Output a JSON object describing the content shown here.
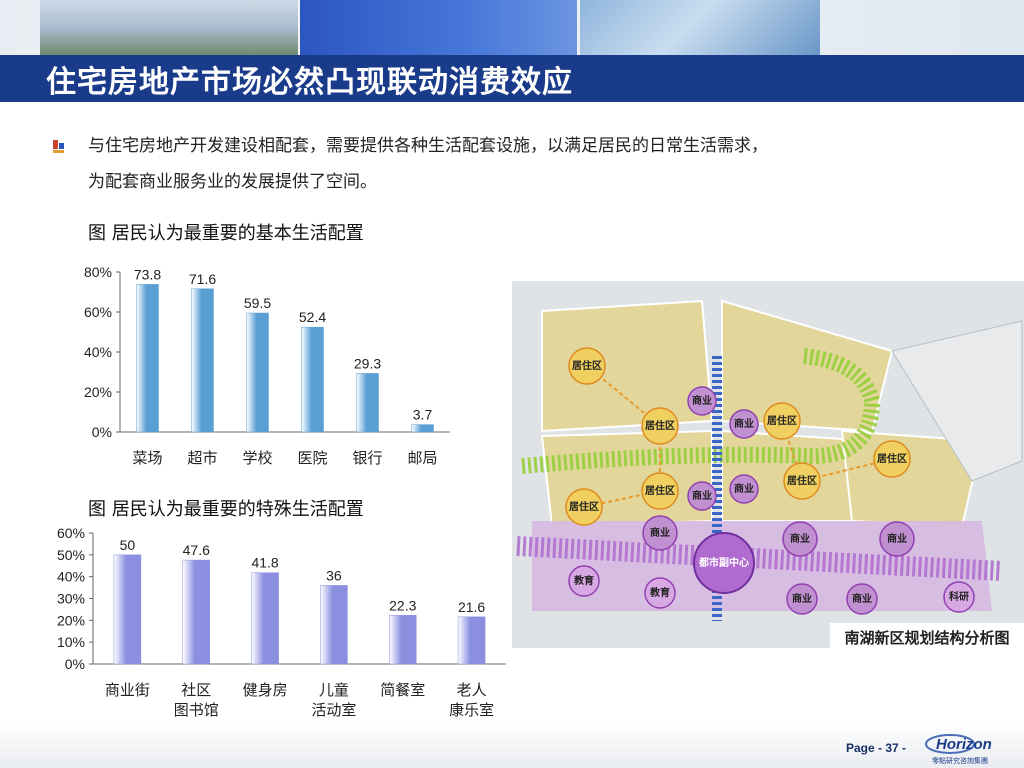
{
  "page": {
    "title": "住宅房地产市场必然凸现联动消费效应",
    "bullet_line1": "与住宅房地产开发建设相配套，需要提供各种生活配套设施，以满足居民的日常生活需求，",
    "bullet_line2": "为配套商业服务业的发展提供了空间。",
    "page_number": "Page - 37 -",
    "logo_text": "Horizon",
    "logo_subtext": "零點研究咨詢集團"
  },
  "map": {
    "caption": "南湖新区规划结构分析图",
    "center_label": "都市副中心",
    "labels": [
      "居住区",
      "居住区",
      "居住区",
      "居住区",
      "居住区",
      "居住区",
      "居住区",
      "商业",
      "商业",
      "商业",
      "商业",
      "商业",
      "商业",
      "商业",
      "商业",
      "商业",
      "教育",
      "教育",
      "科研"
    ],
    "colors": {
      "residential": "#f0d060",
      "commercial": "#c090d0",
      "green_axis": "#9ad040",
      "blue_axis": "#3a66c8"
    }
  },
  "chart_data": [
    {
      "type": "bar",
      "title": "图  居民认为最重要的基本生活配置",
      "categories": [
        "菜场",
        "超市",
        "学校",
        "医院",
        "银行",
        "邮局"
      ],
      "values": [
        73.8,
        71.6,
        59.5,
        52.4,
        29.3,
        3.7
      ],
      "value_labels": [
        "73.8",
        "71.6",
        "59.5",
        "52.4",
        "29.3",
        "3.7"
      ],
      "ylim": [
        0,
        80
      ],
      "yticks": [
        "0%",
        "20%",
        "40%",
        "60%",
        "80%"
      ],
      "ytick_values": [
        0,
        20,
        40,
        60,
        80
      ],
      "bar_color": "#5a9fd4",
      "grid": false
    },
    {
      "type": "bar",
      "title": "图  居民认为最重要的特殊生活配置",
      "categories": [
        "商业街",
        "社区\n图书馆",
        "健身房",
        "儿童\n活动室",
        "简餐室",
        "老人\n康乐室"
      ],
      "values": [
        50,
        47.6,
        41.8,
        36,
        22.3,
        21.6
      ],
      "value_labels": [
        "50",
        "47.6",
        "41.8",
        "36",
        "22.3",
        "21.6"
      ],
      "ylim": [
        0,
        60
      ],
      "yticks": [
        "0%",
        "10%",
        "20%",
        "30%",
        "40%",
        "50%",
        "60%"
      ],
      "ytick_values": [
        0,
        10,
        20,
        30,
        40,
        50,
        60
      ],
      "bar_color": "#8a8fe0",
      "grid": false
    }
  ]
}
